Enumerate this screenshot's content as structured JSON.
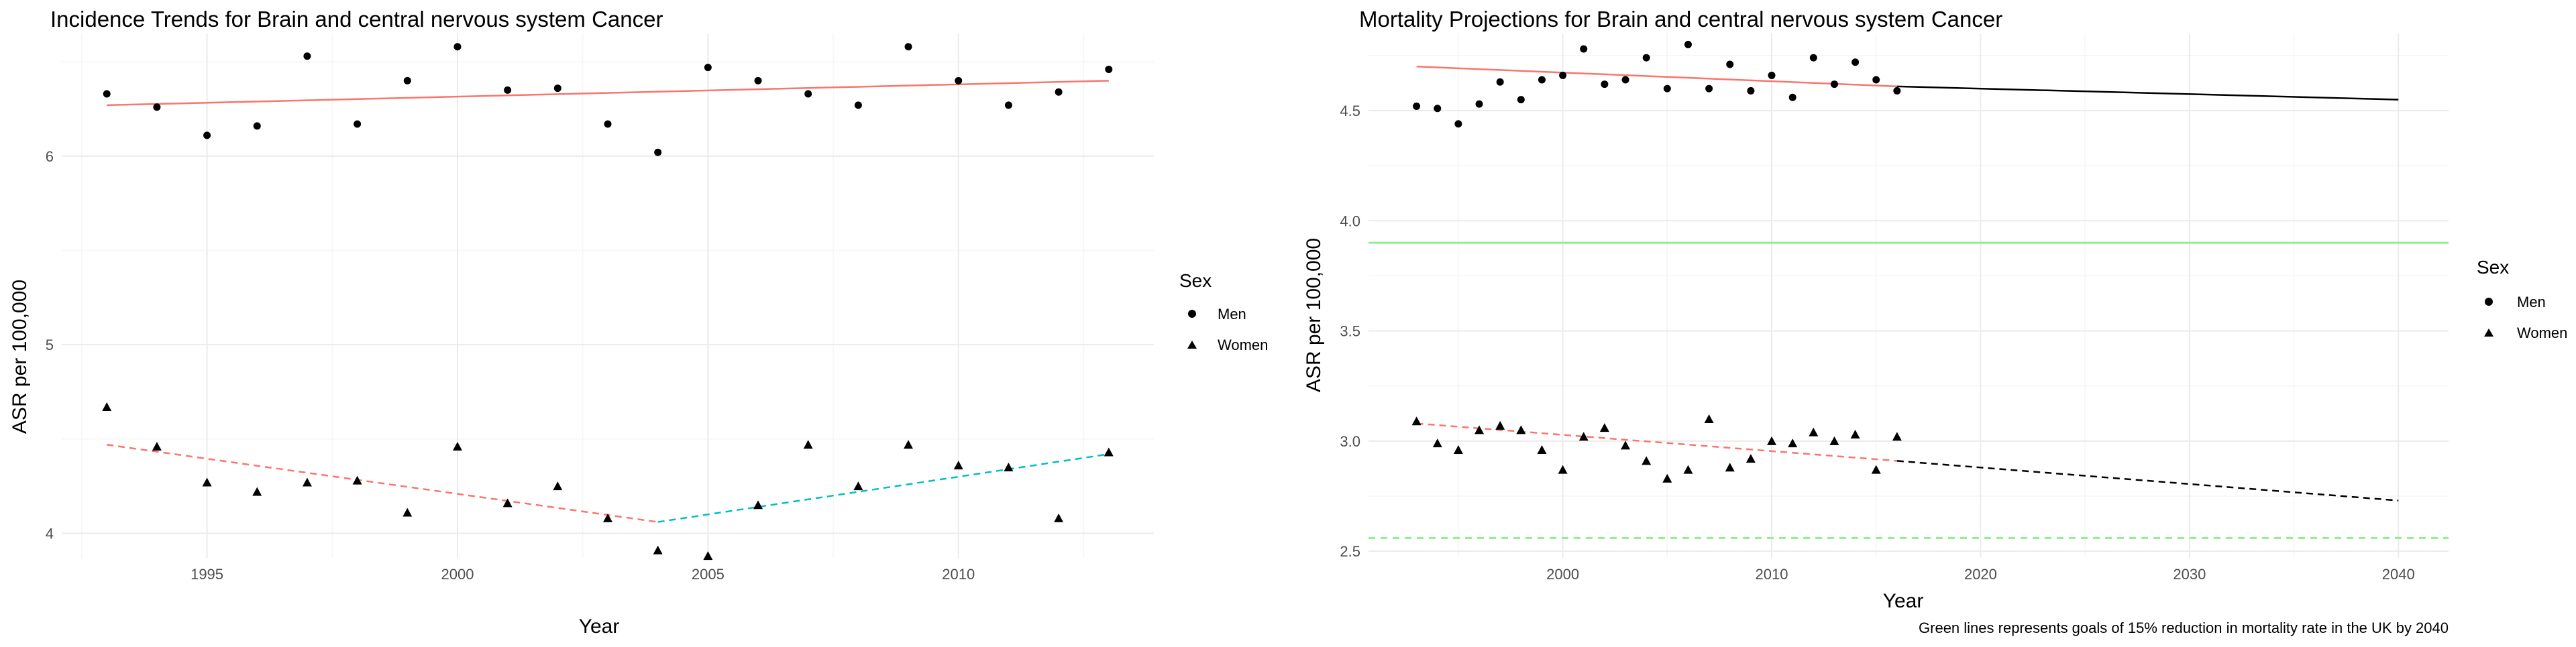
{
  "colors": {
    "men_fit": "#F8766D",
    "women_fit_1": "#F8766D",
    "women_fit_2": "#00BFC4",
    "projection": "#000000",
    "goal": "#90EE90",
    "grid": "#EBEBEB",
    "points": "#000000"
  },
  "chart_data": [
    {
      "type": "scatter",
      "title": "Incidence Trends for Brain and central nervous system Cancer",
      "xlabel": "Year",
      "ylabel": "ASR per 100,000",
      "xlim": [
        1992.1,
        2013.9
      ],
      "ylim": [
        3.87,
        6.65
      ],
      "x_ticks": [
        1995,
        2000,
        2005,
        2010
      ],
      "y_ticks": [
        4,
        5,
        6
      ],
      "x_tick_labels": [
        "1995",
        "2000",
        "2005",
        "2010"
      ],
      "y_tick_labels": [
        "4",
        "5",
        "6"
      ],
      "grid": true,
      "legend": {
        "title": "Sex",
        "position": "right",
        "entries": [
          "Men",
          "Women"
        ]
      },
      "series": [
        {
          "name": "Men",
          "marker": "circle",
          "x": [
            1993,
            1994,
            1995,
            1996,
            1997,
            1998,
            1999,
            2000,
            2001,
            2002,
            2003,
            2004,
            2005,
            2006,
            2007,
            2008,
            2009,
            2010,
            2011,
            2012,
            2013
          ],
          "y": [
            6.33,
            6.26,
            6.11,
            6.16,
            6.53,
            6.17,
            6.4,
            6.58,
            6.35,
            6.36,
            6.17,
            6.02,
            6.47,
            6.4,
            6.33,
            6.27,
            6.58,
            6.4,
            6.27,
            6.34,
            6.46
          ]
        },
        {
          "name": "Women",
          "marker": "triangle",
          "x": [
            1993,
            1994,
            1995,
            1996,
            1997,
            1998,
            1999,
            2000,
            2001,
            2002,
            2003,
            2004,
            2005,
            2006,
            2007,
            2008,
            2009,
            2010,
            2011,
            2012,
            2013
          ],
          "y": [
            4.67,
            4.46,
            4.27,
            4.22,
            4.27,
            4.28,
            4.11,
            4.46,
            4.16,
            4.25,
            4.08,
            3.91,
            3.88,
            4.15,
            4.47,
            4.25,
            4.47,
            4.36,
            4.35,
            4.08,
            4.43
          ]
        }
      ],
      "trend_lines": [
        {
          "series": "Men",
          "x": [
            1993,
            2013
          ],
          "y": [
            6.27,
            6.4
          ],
          "style": "solid",
          "color_key": "men_fit"
        },
        {
          "series": "Women",
          "x": [
            1993,
            2004
          ],
          "y": [
            4.47,
            4.06
          ],
          "style": "dashed",
          "color_key": "women_fit_1"
        },
        {
          "series": "Women",
          "x": [
            2004,
            2013
          ],
          "y": [
            4.06,
            4.42
          ],
          "style": "dashed",
          "color_key": "women_fit_2"
        }
      ]
    },
    {
      "type": "scatter",
      "title": "Mortality Projections for Brain and central nervous system Cancer",
      "xlabel": "Year",
      "ylabel": "ASR per 100,000",
      "footnote": "Green lines represents goals of 15% reduction in mortality rate in the UK by 2040",
      "xlim": [
        1990.7,
        2042.4
      ],
      "ylim": [
        2.47,
        4.85
      ],
      "x_ticks": [
        2000,
        2010,
        2020,
        2030,
        2040
      ],
      "y_ticks": [
        2.5,
        3.0,
        3.5,
        4.0,
        4.5
      ],
      "x_tick_labels": [
        "2000",
        "2010",
        "2020",
        "2030",
        "2040"
      ],
      "y_tick_labels": [
        "2.5",
        "3.0",
        "3.5",
        "4.0",
        "4.5"
      ],
      "grid": true,
      "legend": {
        "title": "Sex",
        "position": "right",
        "entries": [
          "Men",
          "Women"
        ]
      },
      "series": [
        {
          "name": "Men",
          "marker": "circle",
          "x": [
            1993,
            1994,
            1995,
            1996,
            1997,
            1998,
            1999,
            2000,
            2001,
            2002,
            2003,
            2004,
            2005,
            2006,
            2007,
            2008,
            2009,
            2010,
            2011,
            2012,
            2013,
            2014,
            2015,
            2016
          ],
          "y": [
            4.52,
            4.51,
            4.44,
            4.53,
            4.63,
            4.55,
            4.64,
            4.66,
            4.78,
            4.62,
            4.64,
            4.74,
            4.6,
            4.8,
            4.6,
            4.71,
            4.59,
            4.66,
            4.56,
            4.74,
            4.62,
            4.72,
            4.64,
            4.59
          ]
        },
        {
          "name": "Women",
          "marker": "triangle",
          "x": [
            1993,
            1994,
            1995,
            1996,
            1997,
            1998,
            1999,
            2000,
            2001,
            2002,
            2003,
            2004,
            2005,
            2006,
            2007,
            2008,
            2009,
            2010,
            2011,
            2012,
            2013,
            2014,
            2015,
            2016
          ],
          "y": [
            3.09,
            2.99,
            2.96,
            3.05,
            3.07,
            3.05,
            2.96,
            2.87,
            3.02,
            3.06,
            2.98,
            2.91,
            2.83,
            2.87,
            3.1,
            2.88,
            2.92,
            3.0,
            2.99,
            3.04,
            3.0,
            3.03,
            2.87,
            3.02
          ]
        }
      ],
      "trend_lines": [
        {
          "series": "Men",
          "x": [
            1993,
            2016
          ],
          "y": [
            4.7,
            4.61
          ],
          "style": "solid",
          "color_key": "men_fit"
        },
        {
          "series": "Men",
          "x": [
            2016,
            2040
          ],
          "y": [
            4.61,
            4.55
          ],
          "style": "solid",
          "color_key": "projection"
        },
        {
          "series": "Women",
          "x": [
            1993,
            2016
          ],
          "y": [
            3.08,
            2.91
          ],
          "style": "dashed",
          "color_key": "women_fit_1"
        },
        {
          "series": "Women",
          "x": [
            2016,
            2040
          ],
          "y": [
            2.91,
            2.73
          ],
          "style": "dashed",
          "color_key": "projection"
        }
      ],
      "reference_lines": [
        {
          "y": 3.9,
          "style": "solid",
          "color_key": "goal"
        },
        {
          "y": 2.56,
          "style": "dashed",
          "color_key": "goal"
        }
      ]
    }
  ]
}
